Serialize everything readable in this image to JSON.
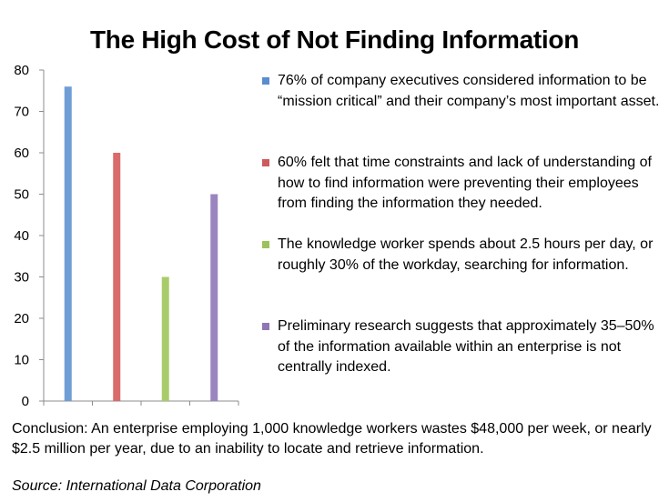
{
  "title": "The High Cost of Not Finding Information",
  "chart_data": {
    "type": "bar",
    "categories": [
      "",
      "",
      "",
      ""
    ],
    "values": [
      76,
      60,
      30,
      50
    ],
    "colors": [
      "#6f9ed6",
      "#d96b6b",
      "#a8cc6a",
      "#9a85c0"
    ],
    "ylim": [
      0,
      80
    ],
    "yticks": [
      "0",
      "10",
      "20",
      "30",
      "40",
      "50",
      "60",
      "70",
      "80"
    ],
    "grid": false,
    "legend_position": "right",
    "legend": [
      {
        "color": "#5b8ccf",
        "text": "76% of company executives considered information to be “mission critical” and their company’s most important asset."
      },
      {
        "color": "#cd5b5b",
        "text": "60% felt that time constraints and lack of understanding of how to find information were preventing their employees from finding the information they needed."
      },
      {
        "color": "#9cc25d",
        "text": "The knowledge worker spends about 2.5 hours per day, or roughly 30% of the workday, searching for information."
      },
      {
        "color": "#8e77b5",
        "text": "Preliminary research suggests that approximately 35–50% of the information available within an enterprise is not centrally indexed."
      }
    ]
  },
  "conclusion": "Conclusion: An enterprise employing 1,000 knowledge workers wastes $48,000 per week, or nearly $2.5 million per year, due to an inability to locate and retrieve information.",
  "source": "Source: International Data Corporation"
}
